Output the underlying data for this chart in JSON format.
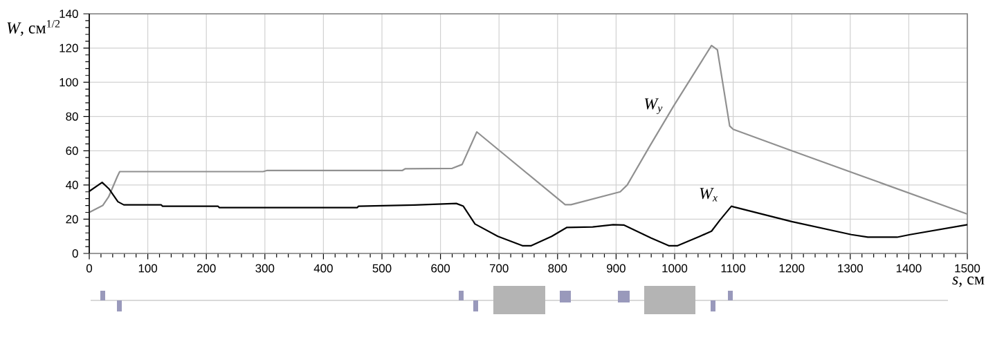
{
  "chart_data": {
    "type": "line",
    "xlabel": "*s*, см",
    "ylabel": "*W*, см$^{1/2}$",
    "xlim": [
      0,
      1500
    ],
    "ylim": [
      0,
      140
    ],
    "xticks": [
      0,
      100,
      200,
      300,
      400,
      500,
      600,
      700,
      800,
      900,
      1000,
      1100,
      1200,
      1300,
      1400,
      1500
    ],
    "yticks": [
      0,
      20,
      40,
      60,
      80,
      100,
      120,
      140
    ],
    "grid": true,
    "line_style": "solid",
    "marker": "none",
    "series": [
      {
        "name": "W$_{y}$",
        "color": "#909090",
        "x": [
          0,
          3,
          23,
          33,
          48,
          52,
          297,
          304,
          535,
          540,
          620,
          637,
          662,
          813,
          823,
          907,
          919,
          958,
          998,
          1063,
          1073,
          1094,
          1100,
          1200,
          1500
        ],
        "values": [
          24,
          24.5,
          28,
          33,
          45,
          47.8,
          47.8,
          48.5,
          48.5,
          49.5,
          49.7,
          52,
          71,
          28.5,
          28.5,
          36,
          40,
          63,
          86,
          121.5,
          119,
          74.5,
          72.5,
          60,
          23
        ]
      },
      {
        "name": "W$_{x}$",
        "color": "#000000",
        "x": [
          0,
          22,
          34,
          49,
          59,
          123,
          125,
          220,
          222,
          458,
          460,
          556,
          627,
          639,
          659,
          698,
          740,
          755,
          790,
          816,
          860,
          895,
          913,
          960,
          990,
          1005,
          1043,
          1063,
          1077,
          1097,
          1101,
          1200,
          1302,
          1330,
          1380,
          1402,
          1500
        ],
        "values": [
          36.3,
          41.5,
          37.6,
          30.2,
          28.4,
          28.4,
          27.6,
          27.6,
          26.8,
          26.8,
          27.6,
          28.3,
          29.2,
          27.6,
          17.2,
          10,
          4.5,
          4.5,
          10,
          15.2,
          15.5,
          16.8,
          16.6,
          9,
          4.5,
          4.5,
          10,
          13,
          19.3,
          27.6,
          27.2,
          18.6,
          11,
          9.5,
          9.5,
          11,
          16.8
        ]
      }
    ]
  }
}
